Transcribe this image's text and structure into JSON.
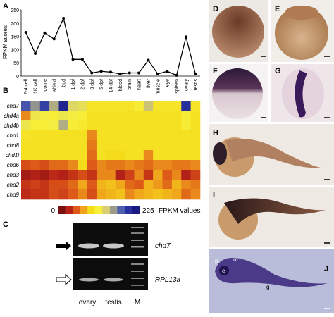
{
  "chart_data": [
    {
      "type": "line",
      "panel": "A",
      "ylabel": "FPKM scores",
      "categories": [
        "2-4 cell",
        "1K cell",
        "dome",
        "shield",
        "bud",
        "1 dpf",
        "2 dpf",
        "3 dpf",
        "5 dpf",
        "14 dpf",
        "blood",
        "brain",
        "heart",
        "liver",
        "muscle",
        "eye",
        "spleen",
        "ovary",
        "testis"
      ],
      "values": [
        165,
        85,
        163,
        140,
        218,
        63,
        63,
        12,
        18,
        15,
        8,
        12,
        12,
        60,
        8,
        18,
        3,
        148,
        8
      ],
      "color": "#000000",
      "ylim": [
        0,
        250
      ],
      "yticks": [
        0,
        50,
        100,
        150,
        200,
        250
      ]
    },
    {
      "type": "heatmap",
      "panel": "B",
      "rows": [
        "chd7",
        "chd4a",
        "chd4b",
        "chd1",
        "chd8",
        "chd1l",
        "chd6",
        "chd3",
        "chd2",
        "chd9"
      ],
      "values": [
        [
          185,
          160,
          195,
          150,
          215,
          130,
          125,
          100,
          100,
          100,
          100,
          100,
          110,
          140,
          100,
          100,
          100,
          205,
          100
        ],
        [
          60,
          120,
          115,
          110,
          120,
          115,
          110,
          95,
          95,
          95,
          95,
          95,
          95,
          95,
          95,
          95,
          95,
          110,
          95
        ],
        [
          120,
          110,
          110,
          115,
          150,
          110,
          105,
          95,
          95,
          95,
          95,
          95,
          95,
          95,
          95,
          95,
          95,
          110,
          95
        ],
        [
          100,
          95,
          95,
          95,
          95,
          95,
          95,
          60,
          95,
          95,
          95,
          95,
          95,
          95,
          95,
          95,
          95,
          95,
          95
        ],
        [
          95,
          95,
          95,
          95,
          95,
          95,
          95,
          55,
          95,
          95,
          95,
          95,
          95,
          95,
          95,
          95,
          95,
          95,
          95
        ],
        [
          95,
          95,
          95,
          95,
          95,
          95,
          95,
          50,
          95,
          90,
          90,
          95,
          95,
          60,
          95,
          95,
          95,
          95,
          95
        ],
        [
          40,
          45,
          40,
          50,
          50,
          60,
          90,
          45,
          60,
          55,
          55,
          60,
          55,
          50,
          60,
          60,
          55,
          55,
          60
        ],
        [
          15,
          20,
          15,
          25,
          20,
          30,
          40,
          30,
          60,
          60,
          20,
          35,
          60,
          30,
          70,
          45,
          60,
          20,
          35
        ],
        [
          30,
          35,
          30,
          40,
          40,
          50,
          70,
          45,
          75,
          80,
          70,
          50,
          45,
          75,
          65,
          50,
          75,
          60,
          55
        ],
        [
          25,
          30,
          30,
          40,
          35,
          45,
          60,
          40,
          70,
          75,
          80,
          60,
          70,
          75,
          80,
          75,
          70,
          50,
          60
        ]
      ],
      "zlim": [
        0,
        225
      ],
      "zlabel": "FPKM values",
      "colors": [
        "#7a1010",
        "#b82318",
        "#dd5a18",
        "#f0a01c",
        "#f5dc1a",
        "#f7ef3a",
        "#d8d070",
        "#9c9c8c",
        "#5060b0",
        "#2830a0",
        "#1a1a80"
      ]
    }
  ],
  "gel": {
    "panel": "C",
    "genes": [
      "chd7",
      "RPL13a"
    ],
    "lanes": [
      "ovary",
      "testis",
      "M"
    ]
  },
  "photos": {
    "panels": [
      "D",
      "E",
      "F",
      "G",
      "H",
      "I",
      "J"
    ],
    "structures": [
      "p",
      "m",
      "e",
      "g"
    ]
  }
}
